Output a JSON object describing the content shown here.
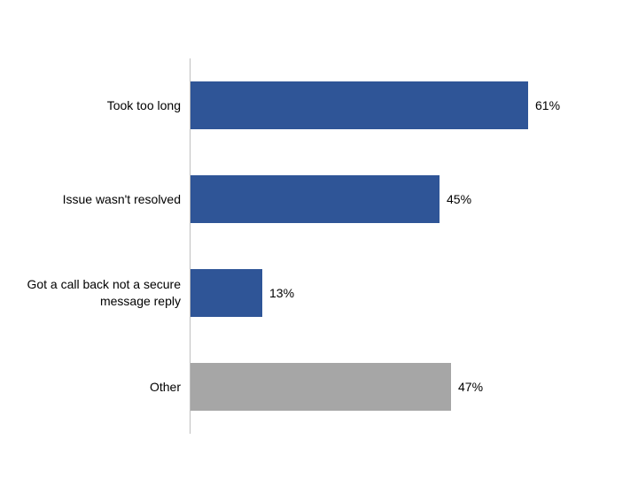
{
  "chart_data": {
    "type": "bar",
    "orientation": "horizontal",
    "title": "",
    "xlabel": "",
    "ylabel": "",
    "categories": [
      "Took too long",
      "Issue wasn't resolved",
      "Got a call back not a secure message reply",
      "Other"
    ],
    "values": [
      61,
      45,
      13,
      47
    ],
    "data_labels": [
      "61%",
      "45%",
      "13%",
      "47%"
    ],
    "bar_colors": [
      "#2F5597",
      "#2F5597",
      "#2F5597",
      "#A6A6A6"
    ],
    "xlim": [
      0,
      100
    ],
    "grid": false,
    "legend_position": "none",
    "colors": {
      "primary_bar": "#2F5597",
      "other_bar": "#A6A6A6",
      "axis_line": "#C0C0C0",
      "label_text": "#000000",
      "background": "#FFFFFF"
    }
  }
}
